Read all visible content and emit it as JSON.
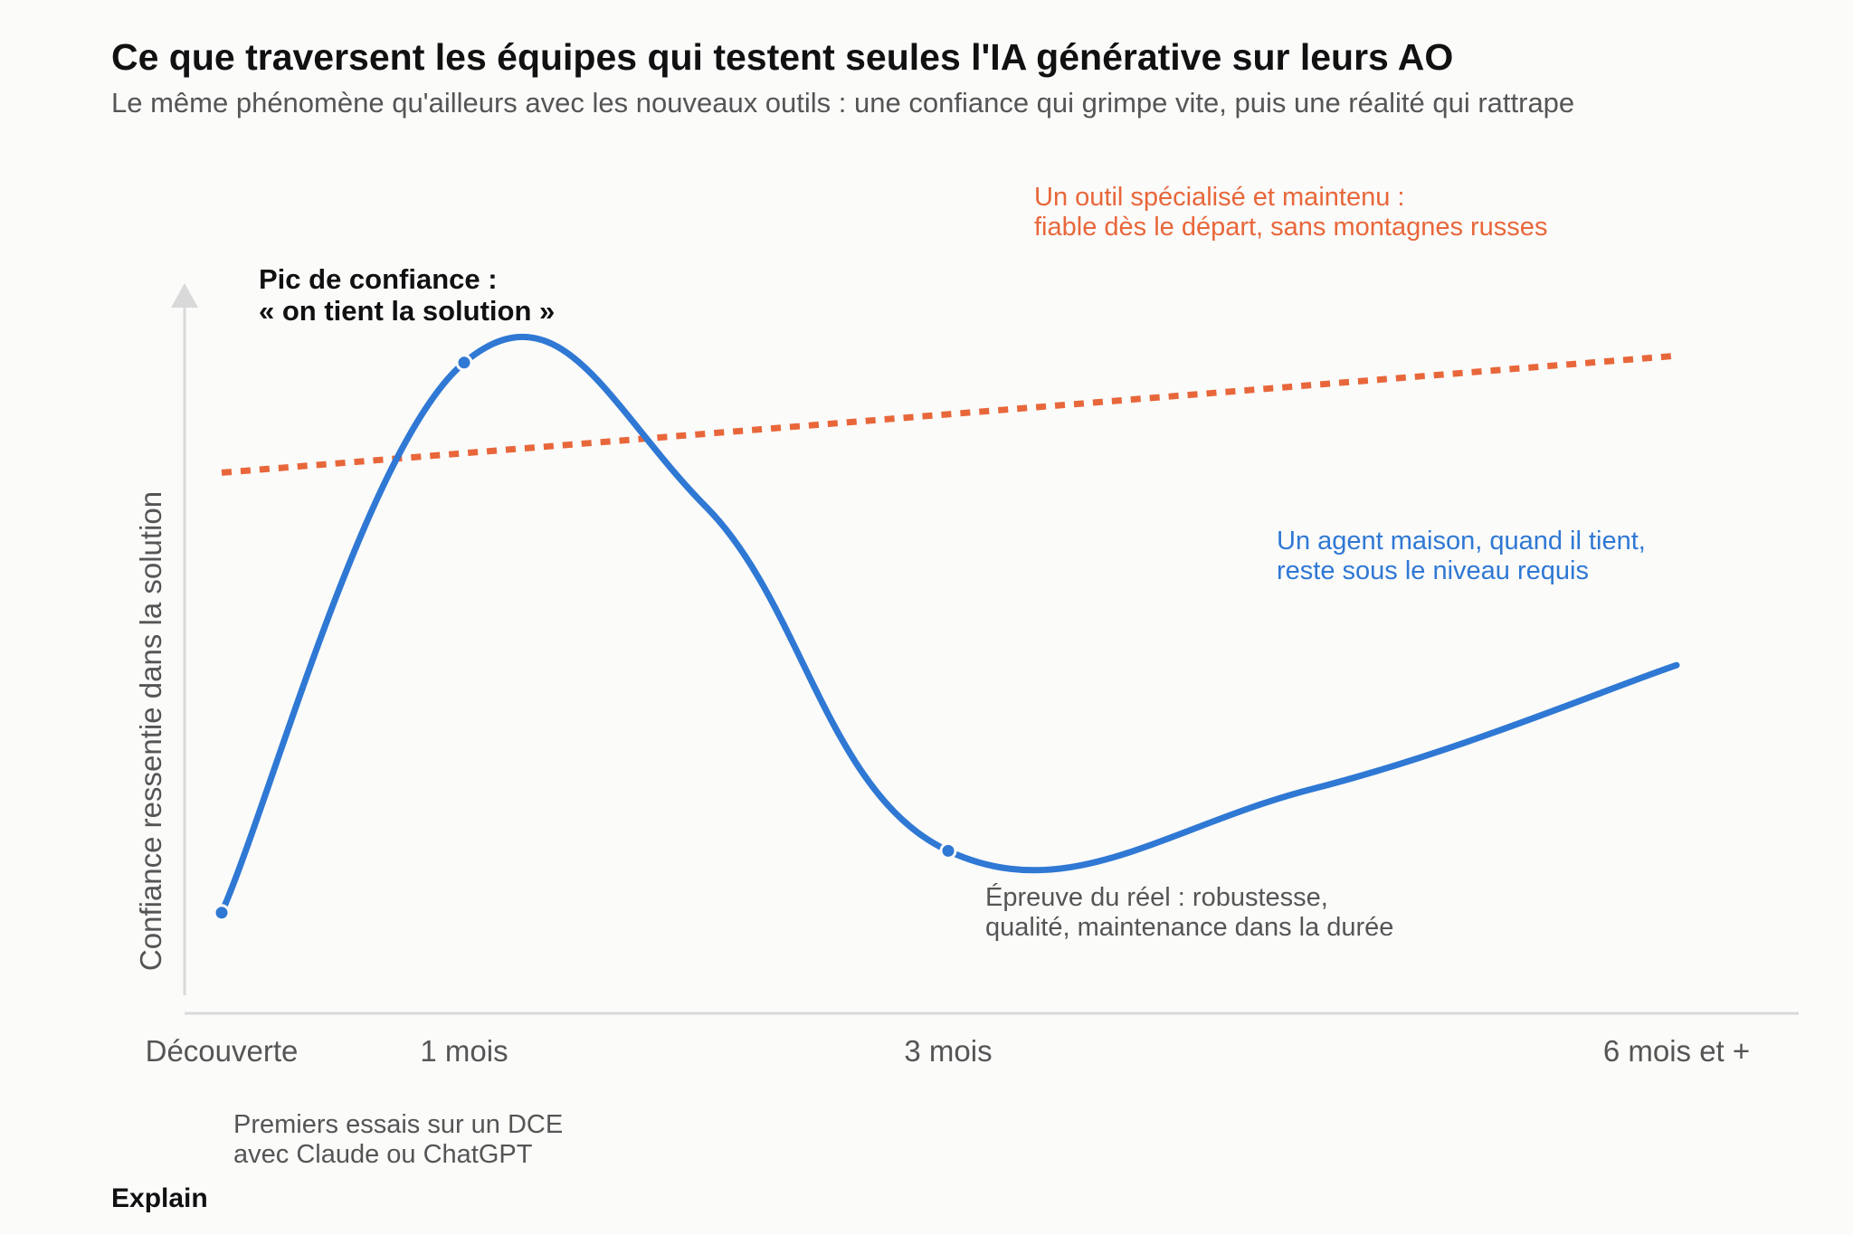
{
  "header": {
    "title": "Ce que traversent les équipes qui testent seules l'IA générative sur leurs AO",
    "subtitle": "Le même phénomène qu'ailleurs avec les nouveaux outils : une confiance qui grimpe vite, puis une réalité qui rattrape"
  },
  "footer": {
    "label": "Explain"
  },
  "chart_data": {
    "type": "line",
    "title": "Ce que traversent les équipes qui testent seules l'IA générative sur leurs AO",
    "subtitle": "Le même phénomène qu'ailleurs avec les nouveaux outils : une confiance qui grimpe vite, puis une réalité qui rattrape",
    "xlabel": "",
    "ylabel": "Confiance ressentie dans la solution",
    "categories": [
      "Découverte",
      "1 mois",
      "3 mois",
      "6 mois et +"
    ],
    "grid": false,
    "y_ticks_shown": false,
    "series": [
      {
        "name": "Un agent maison, quand il tient, reste sous le niveau requis",
        "color": "#2f78d4",
        "style": "solid",
        "points": [
          {
            "x": 0,
            "y": 0.12
          },
          {
            "x": 1,
            "y": 0.92
          },
          {
            "x": 1.5,
            "y": 0.71
          },
          {
            "x": 2,
            "y": 0.21
          },
          {
            "x": 2.5,
            "y": 0.3
          },
          {
            "x": 3,
            "y": 0.48
          }
        ]
      },
      {
        "name": "Un outil spécialisé et maintenu : fiable dès le départ, sans montagnes russes",
        "color": "#e8673a",
        "style": "dotted",
        "points": [
          {
            "x": 0,
            "y": 0.76
          },
          {
            "x": 3,
            "y": 0.93
          }
        ]
      }
    ],
    "markers": [
      {
        "x": 0,
        "y": 0.12
      },
      {
        "x": 1,
        "y": 0.92
      },
      {
        "x": 2,
        "y": 0.21
      }
    ],
    "annotations": {
      "peak": [
        "Pic de confiance :",
        "« on tient la solution »"
      ],
      "discovery": [
        "Premiers essais sur un DCE",
        "avec Claude ou ChatGPT"
      ],
      "reality": [
        "Épreuve du réel : robustesse,",
        "qualité, maintenance dans la durée"
      ],
      "specialized": [
        "Un outil spécialisé et maintenu :",
        "fiable dès le départ, sans montagnes russes"
      ],
      "inhouse": [
        "Un agent maison, quand il tient,",
        "reste sous le niveau requis"
      ]
    },
    "colors": {
      "inhouse": "#2f78d4",
      "specialized": "#e8673a",
      "axis": "#d9d9d9",
      "muted_text": "#555555"
    }
  }
}
